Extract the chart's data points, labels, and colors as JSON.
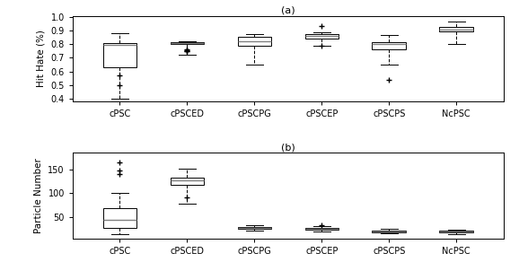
{
  "labels": [
    "cPSC",
    "cPSCED",
    "cPSCPG",
    "cPSCEP",
    "cPSCPS",
    "NcPSC"
  ],
  "subplot_a": {
    "title": "(a)",
    "ylabel": "Hit Hate (%)",
    "ylim": [
      0.38,
      1.01
    ],
    "yticks": [
      0.4,
      0.5,
      0.6,
      0.7,
      0.8,
      0.9,
      1.0
    ],
    "boxes": [
      {
        "whislo": 0.4,
        "q1": 0.63,
        "med": 0.795,
        "q3": 0.81,
        "whishi": 0.88,
        "fliers": [
          0.57,
          0.5
        ]
      },
      {
        "whislo": 0.72,
        "q1": 0.803,
        "med": 0.81,
        "q3": 0.816,
        "whishi": 0.821,
        "fliers": [
          0.76,
          0.755,
          0.752,
          0.748
        ]
      },
      {
        "whislo": 0.65,
        "q1": 0.79,
        "med": 0.825,
        "q3": 0.855,
        "whishi": 0.875,
        "fliers": []
      },
      {
        "whislo": 0.79,
        "q1": 0.845,
        "med": 0.86,
        "q3": 0.872,
        "whishi": 0.885,
        "fliers": [
          0.935,
          0.788
        ]
      },
      {
        "whislo": 0.65,
        "q1": 0.765,
        "med": 0.8,
        "q3": 0.815,
        "whishi": 0.865,
        "fliers": [
          0.535
        ]
      },
      {
        "whislo": 0.8,
        "q1": 0.893,
        "med": 0.91,
        "q3": 0.928,
        "whishi": 0.965,
        "fliers": []
      }
    ]
  },
  "subplot_b": {
    "title": "(b)",
    "ylabel": "Particle Number",
    "ylim": [
      5,
      185
    ],
    "yticks": [
      50,
      100,
      150
    ],
    "boxes": [
      {
        "whislo": 14,
        "q1": 28,
        "med": 45,
        "q3": 68,
        "whishi": 100,
        "fliers": [
          140,
          148,
          165
        ]
      },
      {
        "whislo": 78,
        "q1": 118,
        "med": 127,
        "q3": 133,
        "whishi": 152,
        "fliers": [
          91
        ]
      },
      {
        "whislo": 22,
        "q1": 25,
        "med": 27,
        "q3": 29,
        "whishi": 32,
        "fliers": []
      },
      {
        "whislo": 20,
        "q1": 23,
        "med": 25,
        "q3": 27,
        "whishi": 30,
        "fliers": [
          33
        ]
      },
      {
        "whislo": 15,
        "q1": 18,
        "med": 20,
        "q3": 22,
        "whishi": 25,
        "fliers": []
      },
      {
        "whislo": 14,
        "q1": 17,
        "med": 19,
        "q3": 21,
        "whishi": 24,
        "fliers": []
      }
    ]
  },
  "box_facecolor": "#ffffff",
  "box_edgecolor": "#000000",
  "median_color": "#808080",
  "whisker_color": "#000000",
  "cap_color": "#000000",
  "flier_marker": "+",
  "flier_color": "#000000",
  "flier_size": 4,
  "linewidth": 0.7
}
